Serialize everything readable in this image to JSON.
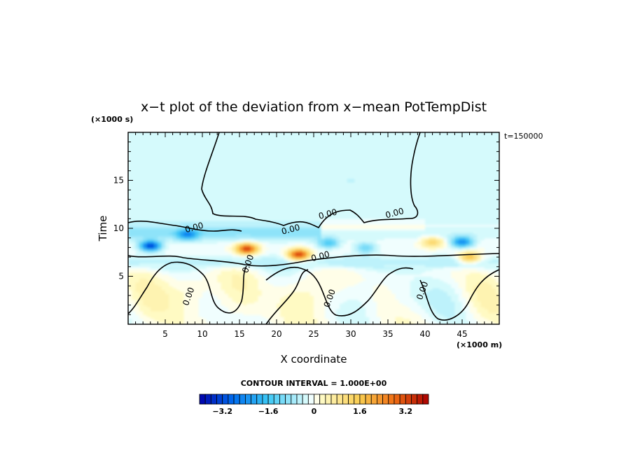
{
  "chart_data": {
    "type": "heatmap",
    "title": "x−t plot of the deviation from x−mean PotTempDist",
    "xlabel": "X coordinate",
    "ylabel": "Time",
    "x_units": "(×1000 m)",
    "y_units": "(×1000 s)",
    "time_stamp": "t=150000",
    "xlim": [
      0,
      50
    ],
    "ylim": [
      0,
      20
    ],
    "x_ticks": [
      5,
      10,
      15,
      20,
      25,
      30,
      35,
      40,
      45
    ],
    "y_ticks": [
      5,
      10,
      15
    ],
    "contour_interval_text": "CONTOUR INTERVAL = 1.000E+00",
    "contour_labels": [
      "0.00",
      "0.00",
      "0.00",
      "0.00",
      "0.00",
      "0.00",
      "0.00",
      "0.00",
      "0.00"
    ],
    "colorbar": {
      "min": -4.0,
      "max": 4.0,
      "step": 0.2,
      "tick_labels": [
        "−3.2",
        "−1.6",
        "0",
        "1.6",
        "3.2"
      ],
      "tick_values": [
        -3.2,
        -1.6,
        0,
        1.6,
        3.2
      ]
    },
    "features": [
      {
        "x": 3,
        "t": 8.2,
        "value": -3.2
      },
      {
        "x": 8,
        "t": 9.4,
        "value": -1.8
      },
      {
        "x": 16,
        "t": 7.9,
        "value": 3.4
      },
      {
        "x": 23,
        "t": 7.3,
        "value": 3.6
      },
      {
        "x": 27,
        "t": 8.5,
        "value": -1.5
      },
      {
        "x": 32,
        "t": 8.0,
        "value": -1.2
      },
      {
        "x": 41,
        "t": 8.6,
        "value": 1.4
      },
      {
        "x": 45,
        "t": 8.6,
        "value": -2.4
      },
      {
        "x": 46,
        "t": 7.0,
        "value": 2.0
      },
      {
        "x": 8.5,
        "t": 3.5,
        "value": 0.6
      },
      {
        "x": 22,
        "t": 3.0,
        "value": 0.4
      },
      {
        "x": 37,
        "t": 2.5,
        "value": -0.4
      },
      {
        "x": 30,
        "t": 15,
        "value": -0.2
      }
    ]
  }
}
